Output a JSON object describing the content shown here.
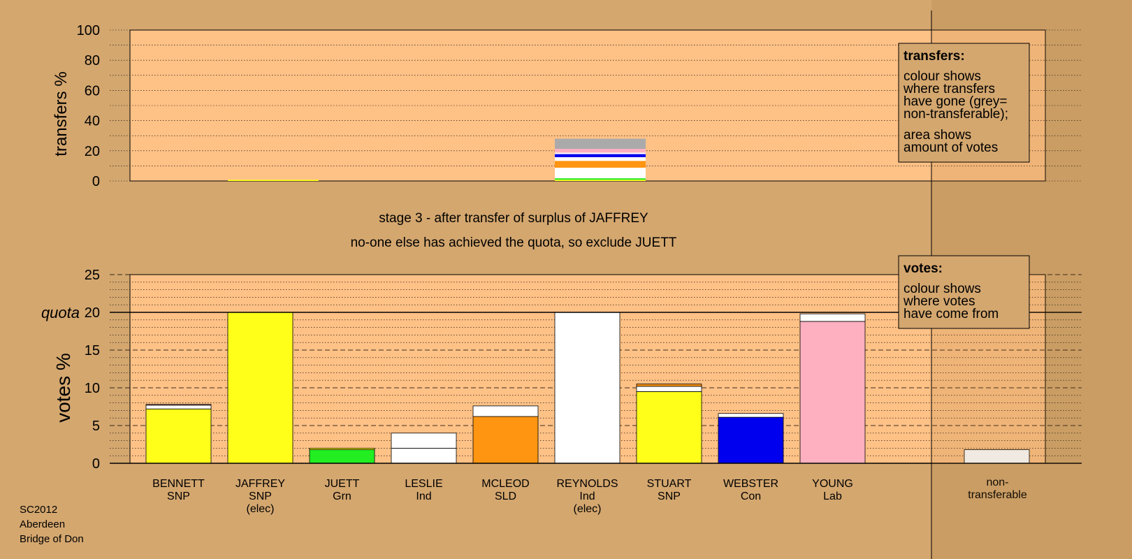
{
  "colors": {
    "page_bg": "#d4a76f",
    "panel_bg": "#fec186",
    "SNP": "#ffff1a",
    "Grn": "#22ee22",
    "Ind": "#ffffff",
    "SLD": "#ff9511",
    "Lab": "#ffb0c0",
    "Con": "#0000ee",
    "non_transferable": "#aaaaaa"
  },
  "stage_text": {
    "line1": "stage 3 - after transfer of surplus of JAFFREY",
    "line2": "no-one else has achieved the quota, so exclude JUETT"
  },
  "footer": {
    "line1": "SC2012",
    "line2": "Aberdeen",
    "line3": "Bridge of Don"
  },
  "legend_transfers": {
    "title": "transfers:",
    "lines": [
      "colour shows",
      "where transfers",
      "have gone (grey=",
      "non-transferable);",
      "area shows",
      "amount of votes"
    ]
  },
  "legend_votes": {
    "title": "votes:",
    "lines": [
      "colour shows",
      "where votes",
      "have come from"
    ]
  },
  "chart_data": [
    {
      "type": "bar",
      "ylabel": "transfers %",
      "ylim": [
        0,
        100
      ],
      "yticks": [
        0,
        20,
        40,
        60,
        80,
        100
      ],
      "columns": [
        {
          "index": 1,
          "segments": [
            {
              "party": "SNP",
              "value": 0.8
            }
          ]
        },
        {
          "index": 5,
          "segments": [
            {
              "party": "SNP",
              "value": 0.8
            },
            {
              "party": "Grn",
              "value": 1.0
            },
            {
              "party": "Ind",
              "value": 1.0
            },
            {
              "party": "Ind",
              "value": 6.0
            },
            {
              "party": "SLD",
              "value": 4.5
            },
            {
              "party": "Ind",
              "value": 2.5
            },
            {
              "party": "Con",
              "value": 2.0
            },
            {
              "party": "Ind",
              "value": 1.0
            },
            {
              "party": "Lab",
              "value": 2.5
            },
            {
              "party": "non_transferable",
              "value": 6.7
            }
          ]
        }
      ]
    },
    {
      "type": "bar",
      "ylabel": "votes %",
      "quota_label": "quota",
      "quota": 20,
      "ylim": [
        0,
        25
      ],
      "yticks": [
        0,
        5,
        10,
        15,
        20,
        25
      ],
      "candidates": [
        {
          "name": "BENNETT",
          "party": "SNP",
          "note": "",
          "segments": [
            {
              "party": "SNP",
              "value": 7.2
            },
            {
              "party": "Ind",
              "value": 0.5
            },
            {
              "party": "Lab",
              "value": 0.1
            }
          ]
        },
        {
          "name": "JAFFREY",
          "party": "SNP",
          "note": "(elec)",
          "segments": [
            {
              "party": "SNP",
              "value": 20.0
            }
          ]
        },
        {
          "name": "JUETT",
          "party": "Grn",
          "note": "",
          "segments": [
            {
              "party": "Grn",
              "value": 1.8
            },
            {
              "party": "SNP",
              "value": 0.2
            }
          ]
        },
        {
          "name": "LESLIE",
          "party": "Ind",
          "note": "",
          "segments": [
            {
              "party": "Ind",
              "value": 2.0
            },
            {
              "party": "Ind",
              "value": 2.0
            }
          ]
        },
        {
          "name": "MCLEOD",
          "party": "SLD",
          "note": "",
          "segments": [
            {
              "party": "SLD",
              "value": 6.2
            },
            {
              "party": "Ind",
              "value": 1.4
            }
          ]
        },
        {
          "name": "REYNOLDS",
          "party": "Ind",
          "note": "(elec)",
          "segments": [
            {
              "party": "Ind",
              "value": 20.0
            }
          ]
        },
        {
          "name": "STUART",
          "party": "SNP",
          "note": "",
          "segments": [
            {
              "party": "SNP",
              "value": 9.5
            },
            {
              "party": "Ind",
              "value": 0.7
            },
            {
              "party": "SLD",
              "value": 0.3
            }
          ]
        },
        {
          "name": "WEBSTER",
          "party": "Con",
          "note": "",
          "segments": [
            {
              "party": "Con",
              "value": 6.1
            },
            {
              "party": "Ind",
              "value": 0.5
            }
          ]
        },
        {
          "name": "YOUNG",
          "party": "Lab",
          "note": "",
          "segments": [
            {
              "party": "Lab",
              "value": 18.8
            },
            {
              "party": "Ind",
              "value": 1.0
            }
          ]
        }
      ],
      "non_transferable": {
        "label_line1": "non-",
        "label_line2": "transferable",
        "value": 1.8
      }
    }
  ]
}
